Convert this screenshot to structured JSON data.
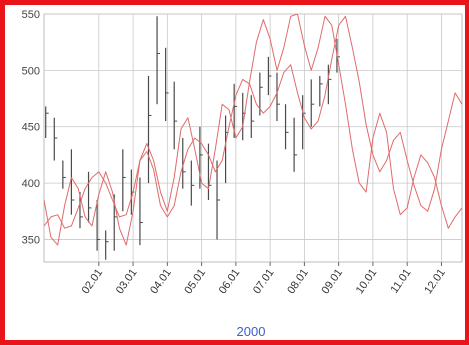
{
  "chart_data": {
    "type": "line",
    "title": "",
    "xlabel": "2000",
    "ylabel": "",
    "ylim": [
      330,
      550
    ],
    "yticks": [
      350,
      400,
      450,
      500,
      550
    ],
    "xlim": [
      0,
      12.2
    ],
    "xtick_labels": [
      "02.01",
      "03.01",
      "04.01",
      "05.01",
      "06.01",
      "07.01",
      "08.01",
      "09.01",
      "10.01",
      "11.01",
      "12.01"
    ],
    "xtick_values": [
      1.6,
      2.6,
      3.6,
      4.6,
      5.6,
      6.6,
      7.6,
      8.6,
      9.6,
      10.6,
      11.6
    ],
    "grid": true,
    "colors": {
      "frame": "#e8141a",
      "grid": "#c8c8c8",
      "price": "#4a4a4a",
      "cycle": "#e06a6a",
      "xlabel": "#3d5fc8"
    },
    "series": [
      {
        "kind": "ohlc",
        "x": [
          0.05,
          0.3,
          0.55,
          0.8,
          1.05,
          1.3,
          1.55,
          1.8,
          2.05,
          2.3,
          2.55,
          2.8,
          3.05,
          3.3,
          3.55,
          3.8,
          4.05,
          4.3,
          4.55,
          4.8,
          5.05,
          5.3,
          5.55,
          5.8,
          6.05,
          6.3,
          6.55,
          6.8,
          7.05,
          7.3,
          7.55,
          7.8,
          8.05,
          8.3,
          8.55
        ],
        "high": [
          468,
          458,
          420,
          430,
          392,
          410,
          385,
          358,
          390,
          430,
          412,
          405,
          495,
          548,
          520,
          490,
          440,
          420,
          450,
          435,
          420,
          460,
          488,
          480,
          478,
          498,
          512,
          498,
          470,
          458,
          478,
          492,
          495,
          505,
          528
        ],
        "low": [
          440,
          420,
          395,
          372,
          360,
          365,
          340,
          332,
          340,
          375,
          372,
          345,
          400,
          470,
          455,
          430,
          395,
          380,
          395,
          385,
          350,
          400,
          440,
          438,
          440,
          460,
          478,
          455,
          430,
          410,
          430,
          450,
          468,
          470,
          498
        ],
        "close": [
          462,
          440,
          405,
          385,
          370,
          378,
          350,
          348,
          370,
          405,
          392,
          365,
          460,
          515,
          480,
          455,
          410,
          398,
          425,
          398,
          385,
          445,
          468,
          462,
          455,
          485,
          495,
          470,
          445,
          425,
          462,
          470,
          488,
          492,
          512
        ]
      },
      {
        "kind": "line",
        "x": [
          0.0,
          0.2,
          0.4,
          0.6,
          0.8,
          1.0,
          1.2,
          1.4,
          1.6,
          1.8,
          2.0,
          2.2,
          2.4,
          2.6,
          2.8,
          3.0,
          3.2,
          3.4,
          3.6,
          3.8,
          4.0,
          4.2,
          4.4,
          4.6,
          4.8,
          5.0,
          5.2,
          5.4,
          5.6,
          5.8,
          6.0,
          6.2,
          6.4,
          6.6,
          6.8,
          7.0,
          7.2,
          7.4,
          7.6,
          7.8,
          8.0,
          8.2,
          8.4,
          8.6,
          8.8,
          9.0,
          9.2,
          9.4,
          9.6,
          9.8,
          10.0,
          10.2,
          10.4,
          10.6,
          10.8,
          11.0,
          11.2,
          11.4,
          11.6,
          11.8,
          12.0,
          12.2
        ],
        "y": [
          385,
          352,
          345,
          380,
          405,
          395,
          370,
          362,
          390,
          410,
          392,
          360,
          345,
          375,
          420,
          435,
          420,
          392,
          375,
          405,
          448,
          458,
          430,
          400,
          395,
          430,
          470,
          465,
          440,
          450,
          490,
          525,
          545,
          528,
          500,
          520,
          548,
          550,
          522,
          500,
          520,
          548,
          540,
          505,
          470,
          430,
          400,
          392,
          440,
          462,
          445,
          395,
          372,
          378,
          405,
          425,
          418,
          405,
          380,
          360,
          370,
          378
        ]
      },
      {
        "kind": "line",
        "x": [
          0.0,
          0.2,
          0.4,
          0.6,
          0.8,
          1.0,
          1.2,
          1.4,
          1.6,
          1.8,
          2.0,
          2.2,
          2.4,
          2.6,
          2.8,
          3.0,
          3.2,
          3.4,
          3.6,
          3.8,
          4.0,
          4.2,
          4.4,
          4.6,
          4.8,
          5.0,
          5.2,
          5.4,
          5.6,
          5.8,
          6.0,
          6.2,
          6.4,
          6.6,
          6.8,
          7.0,
          7.2,
          7.4,
          7.6,
          7.8,
          8.0,
          8.2,
          8.4,
          8.6,
          8.8,
          9.0,
          9.2,
          9.4,
          9.6,
          9.8,
          10.0,
          10.2,
          10.4,
          10.6,
          10.8,
          11.0,
          11.2,
          11.4,
          11.6,
          11.8,
          12.0,
          12.2
        ],
        "y": [
          362,
          370,
          372,
          360,
          362,
          378,
          395,
          405,
          410,
          400,
          385,
          370,
          372,
          392,
          420,
          428,
          412,
          380,
          370,
          380,
          410,
          430,
          440,
          435,
          425,
          410,
          420,
          450,
          478,
          492,
          488,
          470,
          462,
          468,
          480,
          498,
          505,
          480,
          458,
          448,
          455,
          478,
          510,
          540,
          548,
          520,
          490,
          452,
          425,
          410,
          420,
          438,
          445,
          420,
          398,
          380,
          375,
          395,
          430,
          455,
          480,
          470
        ]
      }
    ]
  }
}
